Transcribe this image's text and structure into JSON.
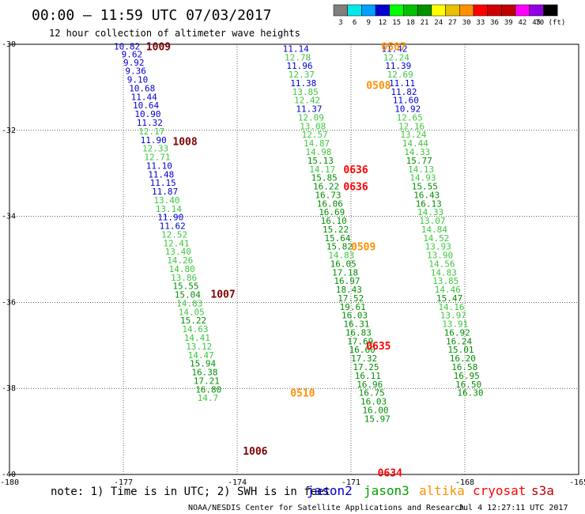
{
  "header": {
    "title": "00:00 — 11:59 UTC 07/03/2017",
    "subtitle": "12 hour collection of altimeter wave heights"
  },
  "colorbar": {
    "values": [
      "3",
      "6",
      "9",
      "12",
      "15",
      "18",
      "21",
      "24",
      "27",
      "30",
      "33",
      "36",
      "39",
      "42",
      "45",
      "70 (ft)"
    ],
    "colors": [
      "#7f7f7f",
      "#00e8e8",
      "#00a0ff",
      "#0000d0",
      "#00ff00",
      "#00c000",
      "#009000",
      "#ffff00",
      "#e8c000",
      "#ff9000",
      "#ff0000",
      "#d00000",
      "#c00000",
      "#ff00ff",
      "#9000e0",
      "#000000"
    ]
  },
  "axes": {
    "x_ticks": [
      "-180",
      "-177",
      "-174",
      "-171",
      "-168",
      "-165"
    ],
    "y_ticks": [
      "-30",
      "-32",
      "-34",
      "-36",
      "-38",
      "-40"
    ]
  },
  "footer": {
    "note": "note: 1) Time is in UTC; 2) SWH is in feet",
    "legend": [
      {
        "name": "jason2",
        "color": "#0000d0"
      },
      {
        "name": "jason3",
        "color": "#00a000"
      },
      {
        "name": "altika",
        "color": "#ff9000"
      },
      {
        "name": "cryosat",
        "color": "#ff0000"
      },
      {
        "name": "s3a",
        "color": "#c00000"
      }
    ],
    "credit": "NOAA/NESDIS Center for Satellite Applications and Research",
    "timestamp": "Jul  4 12:27:11 UTC 2017"
  },
  "chart_data": {
    "type": "scatter",
    "title": "00:00 — 11:59 UTC 07/03/2017",
    "subtitle": "12 hour collection of altimeter wave heights",
    "xlim": [
      -180,
      -165
    ],
    "ylim": [
      -40,
      -30
    ],
    "x_ticks": [
      -180,
      -177,
      -174,
      -171,
      -168,
      -165
    ],
    "y_ticks": [
      -30,
      -32,
      -34,
      -36,
      -38,
      -40
    ],
    "series": [
      {
        "name": "jason2",
        "points": [
          {
            "x": -177.25,
            "y": -30.05,
            "v": "10.82",
            "c": "#0000d0"
          },
          {
            "x": -177.05,
            "y": -30.23,
            "v": "9.62",
            "c": "#0000d0"
          },
          {
            "x": -177.0,
            "y": -30.42,
            "v": "9.92",
            "c": "#0000d0"
          },
          {
            "x": -176.95,
            "y": -30.62,
            "v": "9.36",
            "c": "#0000d0"
          },
          {
            "x": -176.9,
            "y": -30.82,
            "v": "9.10",
            "c": "#0000d0"
          },
          {
            "x": -176.85,
            "y": -31.02,
            "v": "10.68",
            "c": "#0000d0"
          },
          {
            "x": -176.8,
            "y": -31.22,
            "v": "11.44",
            "c": "#0000d0"
          },
          {
            "x": -176.75,
            "y": -31.42,
            "v": "10.64",
            "c": "#0000d0"
          },
          {
            "x": -176.7,
            "y": -31.62,
            "v": "10.90",
            "c": "#0000d0"
          },
          {
            "x": -176.65,
            "y": -31.82,
            "v": "11.32",
            "c": "#0000d0"
          },
          {
            "x": -176.6,
            "y": -32.02,
            "v": "12.17",
            "c": "#3cc83c"
          },
          {
            "x": -176.55,
            "y": -32.22,
            "v": "11.90",
            "c": "#0000d0"
          },
          {
            "x": -176.5,
            "y": -32.42,
            "v": "12.33",
            "c": "#3cc83c"
          },
          {
            "x": -176.45,
            "y": -32.62,
            "v": "12.71",
            "c": "#3cc83c"
          },
          {
            "x": -176.4,
            "y": -32.82,
            "v": "11.10",
            "c": "#0000d0"
          },
          {
            "x": -176.35,
            "y": -33.02,
            "v": "11.48",
            "c": "#0000d0"
          },
          {
            "x": -176.3,
            "y": -33.22,
            "v": "11.15",
            "c": "#0000d0"
          },
          {
            "x": -176.25,
            "y": -33.42,
            "v": "11.87",
            "c": "#0000d0"
          },
          {
            "x": -176.2,
            "y": -33.62,
            "v": "13.40",
            "c": "#3cc83c"
          },
          {
            "x": -176.15,
            "y": -33.82,
            "v": "13.14",
            "c": "#3cc83c"
          },
          {
            "x": -176.1,
            "y": -34.02,
            "v": "11.90",
            "c": "#0000d0"
          },
          {
            "x": -176.05,
            "y": -34.22,
            "v": "11.62",
            "c": "#0000d0"
          },
          {
            "x": -176.0,
            "y": -34.42,
            "v": "12.52",
            "c": "#3cc83c"
          },
          {
            "x": -175.95,
            "y": -34.62,
            "v": "12.41",
            "c": "#3cc83c"
          },
          {
            "x": -175.9,
            "y": -34.82,
            "v": "13.40",
            "c": "#3cc83c"
          },
          {
            "x": -175.85,
            "y": -35.02,
            "v": "14.26",
            "c": "#3cc83c"
          },
          {
            "x": -175.8,
            "y": -35.22,
            "v": "14.80",
            "c": "#3cc83c"
          },
          {
            "x": -175.75,
            "y": -35.42,
            "v": "13.86",
            "c": "#3cc83c"
          },
          {
            "x": -175.7,
            "y": -35.62,
            "v": "15.55",
            "c": "#009000"
          },
          {
            "x": -175.65,
            "y": -35.82,
            "v": "15.04",
            "c": "#009000"
          },
          {
            "x": -175.6,
            "y": -36.02,
            "v": "14.83",
            "c": "#3cc83c"
          },
          {
            "x": -175.55,
            "y": -36.22,
            "v": "14.05",
            "c": "#3cc83c"
          },
          {
            "x": -175.5,
            "y": -36.42,
            "v": "15.22",
            "c": "#009000"
          },
          {
            "x": -175.45,
            "y": -36.62,
            "v": "14.63",
            "c": "#3cc83c"
          },
          {
            "x": -175.4,
            "y": -36.82,
            "v": "14.41",
            "c": "#3cc83c"
          },
          {
            "x": -175.35,
            "y": -37.02,
            "v": "13.12",
            "c": "#3cc83c"
          },
          {
            "x": -175.3,
            "y": -37.22,
            "v": "14.47",
            "c": "#3cc83c"
          },
          {
            "x": -175.25,
            "y": -37.42,
            "v": "15.94",
            "c": "#009000"
          },
          {
            "x": -175.2,
            "y": -37.62,
            "v": "16.38",
            "c": "#009000"
          },
          {
            "x": -175.15,
            "y": -37.82,
            "v": "17.21",
            "c": "#009000"
          },
          {
            "x": -175.1,
            "y": -38.02,
            "v": "16.80",
            "c": "#009000"
          },
          {
            "x": -175.05,
            "y": -38.22,
            "v": "14.7",
            "c": "#3cc83c"
          }
        ]
      },
      {
        "name": "jason3",
        "points": [
          {
            "x": -172.8,
            "y": -30.1,
            "v": "11.14",
            "c": "#0000d0"
          },
          {
            "x": -172.75,
            "y": -30.3,
            "v": "12.78",
            "c": "#3cc83c"
          },
          {
            "x": -172.7,
            "y": -30.5,
            "v": "11.96",
            "c": "#0000d0"
          },
          {
            "x": -172.65,
            "y": -30.7,
            "v": "12.37",
            "c": "#3cc83c"
          },
          {
            "x": -172.6,
            "y": -30.9,
            "v": "11.38",
            "c": "#0000d0"
          },
          {
            "x": -172.55,
            "y": -31.1,
            "v": "13.85",
            "c": "#3cc83c"
          },
          {
            "x": -172.5,
            "y": -31.3,
            "v": "12.42",
            "c": "#3cc83c"
          },
          {
            "x": -172.45,
            "y": -31.5,
            "v": "11.37",
            "c": "#0000d0"
          },
          {
            "x": -172.4,
            "y": -31.7,
            "v": "12.09",
            "c": "#3cc83c"
          },
          {
            "x": -172.35,
            "y": -31.9,
            "v": "13.08",
            "c": "#3cc83c"
          },
          {
            "x": -172.3,
            "y": -32.1,
            "v": "12.57",
            "c": "#3cc83c"
          },
          {
            "x": -172.25,
            "y": -32.3,
            "v": "14.87",
            "c": "#3cc83c"
          },
          {
            "x": -172.2,
            "y": -32.5,
            "v": "14.98",
            "c": "#3cc83c"
          },
          {
            "x": -172.15,
            "y": -32.7,
            "v": "15.13",
            "c": "#009000"
          },
          {
            "x": -172.1,
            "y": -32.9,
            "v": "14.17",
            "c": "#3cc83c"
          },
          {
            "x": -172.05,
            "y": -33.1,
            "v": "15.85",
            "c": "#009000"
          },
          {
            "x": -172.0,
            "y": -33.3,
            "v": "16.22",
            "c": "#009000"
          },
          {
            "x": -171.95,
            "y": -33.5,
            "v": "16.73",
            "c": "#009000"
          },
          {
            "x": -171.9,
            "y": -33.7,
            "v": "16.06",
            "c": "#009000"
          },
          {
            "x": -171.85,
            "y": -33.9,
            "v": "16.69",
            "c": "#009000"
          },
          {
            "x": -171.8,
            "y": -34.1,
            "v": "16.10",
            "c": "#009000"
          },
          {
            "x": -171.75,
            "y": -34.3,
            "v": "15.22",
            "c": "#009000"
          },
          {
            "x": -171.7,
            "y": -34.5,
            "v": "15.64",
            "c": "#009000"
          },
          {
            "x": -171.65,
            "y": -34.7,
            "v": "15.82",
            "c": "#009000"
          },
          {
            "x": -171.6,
            "y": -34.9,
            "v": "14.83",
            "c": "#3cc83c"
          },
          {
            "x": -171.55,
            "y": -35.1,
            "v": "16.05",
            "c": "#009000"
          },
          {
            "x": -171.5,
            "y": -35.3,
            "v": "17.18",
            "c": "#009000"
          },
          {
            "x": -171.45,
            "y": -35.5,
            "v": "16.97",
            "c": "#009000"
          },
          {
            "x": -171.4,
            "y": -35.7,
            "v": "18.43",
            "c": "#009000"
          },
          {
            "x": -171.35,
            "y": -35.9,
            "v": "17.52",
            "c": "#009000"
          },
          {
            "x": -171.3,
            "y": -36.1,
            "v": "19.61",
            "c": "#009000"
          },
          {
            "x": -171.25,
            "y": -36.3,
            "v": "16.03",
            "c": "#009000"
          },
          {
            "x": -171.2,
            "y": -36.5,
            "v": "16.31",
            "c": "#009000"
          },
          {
            "x": -171.15,
            "y": -36.7,
            "v": "16.83",
            "c": "#009000"
          },
          {
            "x": -171.1,
            "y": -36.9,
            "v": "17.69",
            "c": "#009000"
          },
          {
            "x": -171.05,
            "y": -37.1,
            "v": "16.60",
            "c": "#009000"
          },
          {
            "x": -171.0,
            "y": -37.3,
            "v": "17.32",
            "c": "#009000"
          },
          {
            "x": -170.95,
            "y": -37.5,
            "v": "17.25",
            "c": "#009000"
          },
          {
            "x": -170.9,
            "y": -37.7,
            "v": "16.11",
            "c": "#009000"
          },
          {
            "x": -170.85,
            "y": -37.9,
            "v": "16.96",
            "c": "#009000"
          },
          {
            "x": -170.8,
            "y": -38.1,
            "v": "16.75",
            "c": "#009000"
          },
          {
            "x": -170.75,
            "y": -38.3,
            "v": "16.03",
            "c": "#009000"
          },
          {
            "x": -170.7,
            "y": -38.5,
            "v": "16.00",
            "c": "#009000"
          },
          {
            "x": -170.65,
            "y": -38.7,
            "v": "15.97",
            "c": "#009000"
          }
        ]
      },
      {
        "name": "altika",
        "points": [
          {
            "x": -170.2,
            "y": -30.1,
            "v": "11.42",
            "c": "#0000d0"
          },
          {
            "x": -170.15,
            "y": -30.3,
            "v": "12.24",
            "c": "#3cc83c"
          },
          {
            "x": -170.1,
            "y": -30.5,
            "v": "11.39",
            "c": "#0000d0"
          },
          {
            "x": -170.05,
            "y": -30.7,
            "v": "12.69",
            "c": "#3cc83c"
          },
          {
            "x": -170.0,
            "y": -30.9,
            "v": "11.11",
            "c": "#0000d0"
          },
          {
            "x": -169.95,
            "y": -31.1,
            "v": "11.82",
            "c": "#0000d0"
          },
          {
            "x": -169.9,
            "y": -31.3,
            "v": "11.60",
            "c": "#0000d0"
          },
          {
            "x": -169.85,
            "y": -31.5,
            "v": "10.92",
            "c": "#0000d0"
          },
          {
            "x": -169.8,
            "y": -31.7,
            "v": "12.65",
            "c": "#3cc83c"
          },
          {
            "x": -169.75,
            "y": -31.9,
            "v": "12.16",
            "c": "#3cc83c"
          },
          {
            "x": -169.7,
            "y": -32.1,
            "v": "13.24",
            "c": "#3cc83c"
          },
          {
            "x": -169.65,
            "y": -32.3,
            "v": "14.44",
            "c": "#3cc83c"
          },
          {
            "x": -169.6,
            "y": -32.5,
            "v": "14.33",
            "c": "#3cc83c"
          },
          {
            "x": -169.55,
            "y": -32.7,
            "v": "15.77",
            "c": "#009000"
          },
          {
            "x": -169.5,
            "y": -32.9,
            "v": "14.13",
            "c": "#3cc83c"
          },
          {
            "x": -169.45,
            "y": -33.1,
            "v": "14.93",
            "c": "#3cc83c"
          },
          {
            "x": -169.4,
            "y": -33.3,
            "v": "15.55",
            "c": "#009000"
          },
          {
            "x": -169.35,
            "y": -33.5,
            "v": "16.43",
            "c": "#009000"
          },
          {
            "x": -169.3,
            "y": -33.7,
            "v": "16.13",
            "c": "#009000"
          },
          {
            "x": -169.25,
            "y": -33.9,
            "v": "14.33",
            "c": "#3cc83c"
          },
          {
            "x": -169.2,
            "y": -34.1,
            "v": "13.07",
            "c": "#3cc83c"
          },
          {
            "x": -169.15,
            "y": -34.3,
            "v": "14.84",
            "c": "#3cc83c"
          },
          {
            "x": -169.1,
            "y": -34.5,
            "v": "14.52",
            "c": "#3cc83c"
          },
          {
            "x": -169.05,
            "y": -34.7,
            "v": "13.93",
            "c": "#3cc83c"
          },
          {
            "x": -169.0,
            "y": -34.9,
            "v": "13.90",
            "c": "#3cc83c"
          },
          {
            "x": -168.95,
            "y": -35.1,
            "v": "14.56",
            "c": "#3cc83c"
          },
          {
            "x": -168.9,
            "y": -35.3,
            "v": "14.83",
            "c": "#3cc83c"
          },
          {
            "x": -168.85,
            "y": -35.5,
            "v": "13.85",
            "c": "#3cc83c"
          },
          {
            "x": -168.8,
            "y": -35.7,
            "v": "14.46",
            "c": "#3cc83c"
          },
          {
            "x": -168.75,
            "y": -35.9,
            "v": "15.47",
            "c": "#009000"
          },
          {
            "x": -168.7,
            "y": -36.1,
            "v": "14.16",
            "c": "#3cc83c"
          },
          {
            "x": -168.65,
            "y": -36.3,
            "v": "13.97",
            "c": "#3cc83c"
          },
          {
            "x": -168.6,
            "y": -36.5,
            "v": "13.91",
            "c": "#3cc83c"
          },
          {
            "x": -168.55,
            "y": -36.7,
            "v": "16.92",
            "c": "#009000"
          },
          {
            "x": -168.5,
            "y": -36.9,
            "v": "16.24",
            "c": "#009000"
          },
          {
            "x": -168.45,
            "y": -37.1,
            "v": "15.01",
            "c": "#009000"
          },
          {
            "x": -168.4,
            "y": -37.3,
            "v": "16.20",
            "c": "#009000"
          },
          {
            "x": -168.35,
            "y": -37.5,
            "v": "16.58",
            "c": "#009000"
          },
          {
            "x": -168.3,
            "y": -37.7,
            "v": "16.95",
            "c": "#009000"
          },
          {
            "x": -168.25,
            "y": -37.9,
            "v": "16.50",
            "c": "#009000"
          },
          {
            "x": -168.2,
            "y": -38.1,
            "v": "16.30",
            "c": "#009000"
          }
        ]
      }
    ],
    "annotations": [
      {
        "text": "1009",
        "x": -176.4,
        "y": -30.05,
        "c": "#7f0000"
      },
      {
        "text": "1008",
        "x": -175.7,
        "y": -32.25,
        "c": "#7f0000"
      },
      {
        "text": "1007",
        "x": -174.7,
        "y": -35.8,
        "c": "#7f0000"
      },
      {
        "text": "1006",
        "x": -173.85,
        "y": -39.45,
        "c": "#7f0000"
      },
      {
        "text": "0507",
        "x": -170.2,
        "y": -30.05,
        "c": "#ff9000"
      },
      {
        "text": "0508",
        "x": -170.6,
        "y": -30.95,
        "c": "#ff9000"
      },
      {
        "text": "0509",
        "x": -171.0,
        "y": -34.7,
        "c": "#ff9000"
      },
      {
        "text": "0510",
        "x": -172.6,
        "y": -38.1,
        "c": "#ff9000"
      },
      {
        "text": "0636",
        "x": -171.2,
        "y": -32.9,
        "c": "#ff0000"
      },
      {
        "text": "0636",
        "x": -171.2,
        "y": -33.3,
        "c": "#ff0000"
      },
      {
        "text": "0635",
        "x": -170.6,
        "y": -37.0,
        "c": "#ff0000"
      },
      {
        "text": "0634",
        "x": -170.3,
        "y": -39.95,
        "c": "#ff0000"
      }
    ]
  }
}
